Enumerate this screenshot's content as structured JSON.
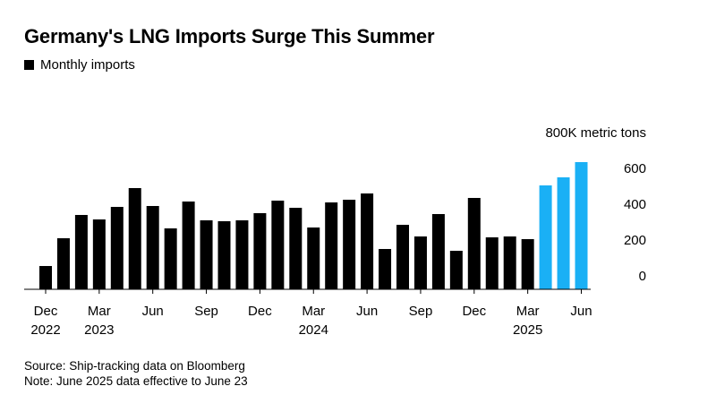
{
  "chart_data": {
    "type": "bar",
    "title": "Germany's LNG Imports Surge This Summer",
    "legend": [
      {
        "label": "Monthly imports",
        "color": "#000000"
      }
    ],
    "unit_label": "800K metric tons",
    "y_ticks": [
      "600",
      "400",
      "200",
      "0"
    ],
    "y_tick_values": [
      600,
      400,
      200,
      0
    ],
    "ylim": [
      0,
      800
    ],
    "y_axis_position": "right",
    "grid": false,
    "x_ticks": [
      {
        "index": 0,
        "month": "Dec",
        "year": "2022"
      },
      {
        "index": 3,
        "month": "Mar",
        "year": "2023"
      },
      {
        "index": 6,
        "month": "Jun",
        "year": ""
      },
      {
        "index": 9,
        "month": "Sep",
        "year": ""
      },
      {
        "index": 12,
        "month": "Dec",
        "year": ""
      },
      {
        "index": 15,
        "month": "Mar",
        "year": "2024"
      },
      {
        "index": 18,
        "month": "Jun",
        "year": ""
      },
      {
        "index": 21,
        "month": "Sep",
        "year": ""
      },
      {
        "index": 24,
        "month": "Dec",
        "year": ""
      },
      {
        "index": 27,
        "month": "Mar",
        "year": "2025"
      },
      {
        "index": 30,
        "month": "Jun",
        "year": ""
      }
    ],
    "categories": [
      "Dec 2022",
      "Jan 2023",
      "Feb 2023",
      "Mar 2023",
      "Apr 2023",
      "May 2023",
      "Jun 2023",
      "Jul 2023",
      "Aug 2023",
      "Sep 2023",
      "Oct 2023",
      "Nov 2023",
      "Dec 2023",
      "Jan 2024",
      "Feb 2024",
      "Mar 2024",
      "Apr 2024",
      "May 2024",
      "Jun 2024",
      "Jul 2024",
      "Aug 2024",
      "Sep 2024",
      "Oct 2024",
      "Nov 2024",
      "Dec 2024",
      "Jan 2025",
      "Feb 2025",
      "Mar 2025",
      "Apr 2025",
      "May 2025",
      "Jun 2025"
    ],
    "values": [
      130,
      285,
      415,
      390,
      460,
      565,
      465,
      340,
      490,
      385,
      380,
      385,
      425,
      495,
      455,
      345,
      485,
      500,
      535,
      225,
      360,
      295,
      420,
      215,
      510,
      290,
      295,
      280,
      580,
      625,
      710
    ],
    "highlight_from_index": 28,
    "colors": {
      "base": "#000000",
      "highlight": "#1ab0f5"
    },
    "source": "Source: Ship-tracking data on Bloomberg",
    "note": "Note: June 2025 data effective to June 23"
  }
}
